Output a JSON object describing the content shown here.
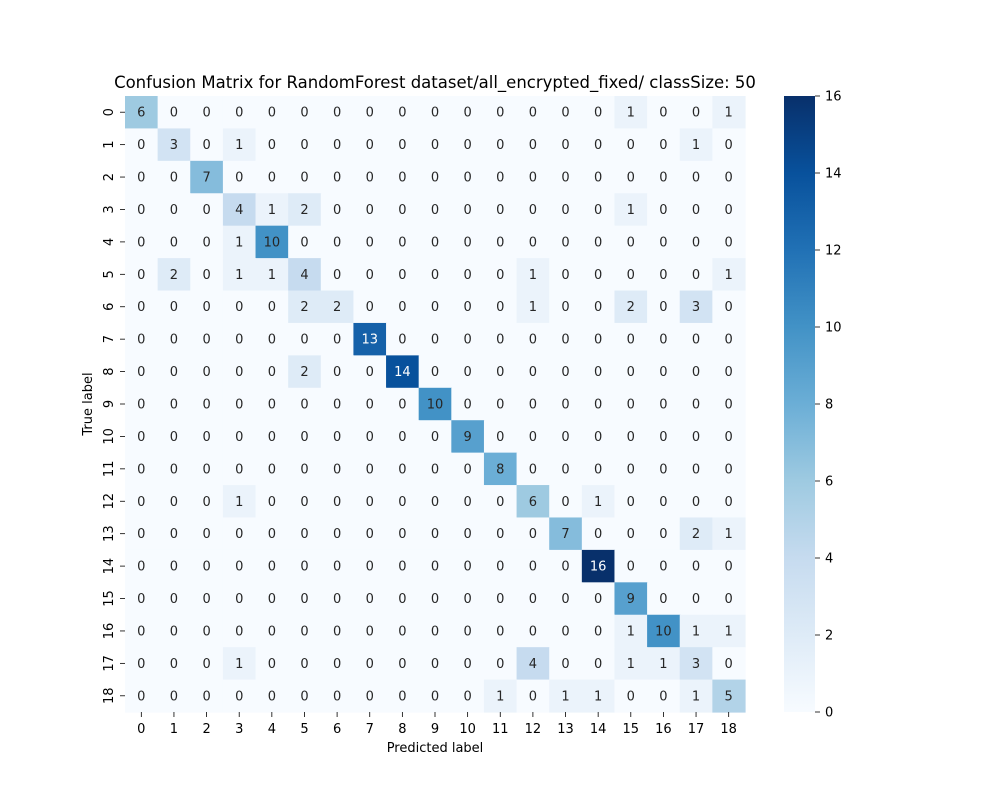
{
  "chart_data": {
    "type": "heatmap",
    "title": "Confusion Matrix for RandomForest dataset/all_encrypted_fixed/ classSize: 50",
    "xlabel": "Predicted label",
    "ylabel": "True label",
    "x_categories": [
      "0",
      "1",
      "2",
      "3",
      "4",
      "5",
      "6",
      "7",
      "8",
      "9",
      "10",
      "11",
      "12",
      "13",
      "14",
      "15",
      "16",
      "17",
      "18"
    ],
    "y_categories": [
      "0",
      "1",
      "2",
      "3",
      "4",
      "5",
      "6",
      "7",
      "8",
      "9",
      "10",
      "11",
      "12",
      "13",
      "14",
      "15",
      "16",
      "17",
      "18"
    ],
    "values": [
      [
        6,
        0,
        0,
        0,
        0,
        0,
        0,
        0,
        0,
        0,
        0,
        0,
        0,
        0,
        0,
        1,
        0,
        0,
        1
      ],
      [
        0,
        3,
        0,
        1,
        0,
        0,
        0,
        0,
        0,
        0,
        0,
        0,
        0,
        0,
        0,
        0,
        0,
        1,
        0
      ],
      [
        0,
        0,
        7,
        0,
        0,
        0,
        0,
        0,
        0,
        0,
        0,
        0,
        0,
        0,
        0,
        0,
        0,
        0,
        0
      ],
      [
        0,
        0,
        0,
        4,
        1,
        2,
        0,
        0,
        0,
        0,
        0,
        0,
        0,
        0,
        0,
        1,
        0,
        0,
        0
      ],
      [
        0,
        0,
        0,
        1,
        10,
        0,
        0,
        0,
        0,
        0,
        0,
        0,
        0,
        0,
        0,
        0,
        0,
        0,
        0
      ],
      [
        0,
        2,
        0,
        1,
        1,
        4,
        0,
        0,
        0,
        0,
        0,
        0,
        1,
        0,
        0,
        0,
        0,
        0,
        1
      ],
      [
        0,
        0,
        0,
        0,
        0,
        2,
        2,
        0,
        0,
        0,
        0,
        0,
        1,
        0,
        0,
        2,
        0,
        3,
        0
      ],
      [
        0,
        0,
        0,
        0,
        0,
        0,
        0,
        13,
        0,
        0,
        0,
        0,
        0,
        0,
        0,
        0,
        0,
        0,
        0
      ],
      [
        0,
        0,
        0,
        0,
        0,
        2,
        0,
        0,
        14,
        0,
        0,
        0,
        0,
        0,
        0,
        0,
        0,
        0,
        0
      ],
      [
        0,
        0,
        0,
        0,
        0,
        0,
        0,
        0,
        0,
        10,
        0,
        0,
        0,
        0,
        0,
        0,
        0,
        0,
        0
      ],
      [
        0,
        0,
        0,
        0,
        0,
        0,
        0,
        0,
        0,
        0,
        9,
        0,
        0,
        0,
        0,
        0,
        0,
        0,
        0
      ],
      [
        0,
        0,
        0,
        0,
        0,
        0,
        0,
        0,
        0,
        0,
        0,
        8,
        0,
        0,
        0,
        0,
        0,
        0,
        0
      ],
      [
        0,
        0,
        0,
        1,
        0,
        0,
        0,
        0,
        0,
        0,
        0,
        0,
        6,
        0,
        1,
        0,
        0,
        0,
        0
      ],
      [
        0,
        0,
        0,
        0,
        0,
        0,
        0,
        0,
        0,
        0,
        0,
        0,
        0,
        7,
        0,
        0,
        0,
        2,
        1
      ],
      [
        0,
        0,
        0,
        0,
        0,
        0,
        0,
        0,
        0,
        0,
        0,
        0,
        0,
        0,
        16,
        0,
        0,
        0,
        0
      ],
      [
        0,
        0,
        0,
        0,
        0,
        0,
        0,
        0,
        0,
        0,
        0,
        0,
        0,
        0,
        0,
        9,
        0,
        0,
        0
      ],
      [
        0,
        0,
        0,
        0,
        0,
        0,
        0,
        0,
        0,
        0,
        0,
        0,
        0,
        0,
        0,
        1,
        10,
        1,
        1
      ],
      [
        0,
        0,
        0,
        1,
        0,
        0,
        0,
        0,
        0,
        0,
        0,
        0,
        4,
        0,
        0,
        1,
        1,
        3,
        0
      ],
      [
        0,
        0,
        0,
        0,
        0,
        0,
        0,
        0,
        0,
        0,
        0,
        1,
        0,
        1,
        1,
        0,
        0,
        1,
        5
      ]
    ],
    "colorbar": {
      "range": [
        0,
        16
      ],
      "ticks": [
        0,
        2,
        4,
        6,
        8,
        10,
        12,
        14,
        16
      ],
      "colormap": "Blues"
    },
    "colors": {
      "low": "#f7fbff",
      "high": "#08306b",
      "text_dark": "#262626",
      "text_light": "#ffffff"
    },
    "grid": false,
    "legend": "colorbar-right"
  }
}
